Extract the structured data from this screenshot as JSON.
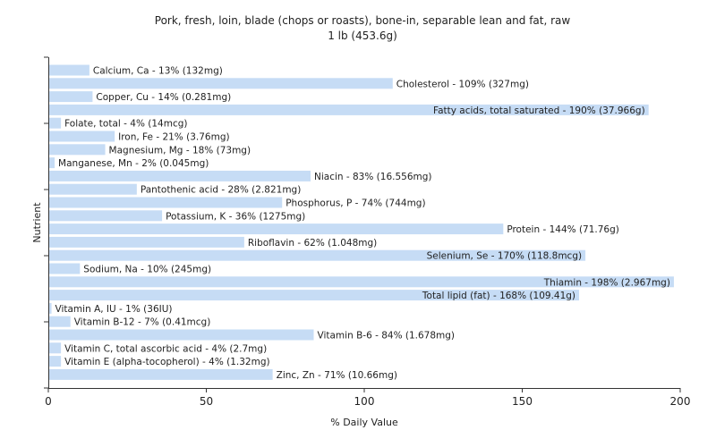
{
  "chart_data": {
    "type": "bar",
    "orientation": "horizontal",
    "title": "Pork, fresh, loin, blade (chops or roasts), bone-in, separable lean and fat, raw",
    "subtitle": "1 lb (453.6g)",
    "xlabel": "% Daily Value",
    "ylabel": "Nutrient",
    "xlim": [
      0,
      200
    ],
    "xticks": [
      0,
      50,
      100,
      150,
      200
    ],
    "grid": false,
    "bar_color": "#c6dcf5",
    "categories": [
      "Calcium, Ca",
      "Cholesterol",
      "Copper, Cu",
      "Fatty acids, total saturated",
      "Folate, total",
      "Iron, Fe",
      "Magnesium, Mg",
      "Manganese, Mn",
      "Niacin",
      "Pantothenic acid",
      "Phosphorus, P",
      "Potassium, K",
      "Protein",
      "Riboflavin",
      "Selenium, Se",
      "Sodium, Na",
      "Thiamin",
      "Total lipid (fat)",
      "Vitamin A, IU",
      "Vitamin B-12",
      "Vitamin B-6",
      "Vitamin C, total ascorbic acid",
      "Vitamin E (alpha-tocopherol)",
      "Zinc, Zn"
    ],
    "values": [
      13,
      109,
      14,
      190,
      4,
      21,
      18,
      2,
      83,
      28,
      74,
      36,
      144,
      62,
      170,
      10,
      198,
      168,
      1,
      7,
      84,
      4,
      4,
      71
    ],
    "labels": [
      "Calcium, Ca - 13% (132mg)",
      "Cholesterol - 109% (327mg)",
      "Copper, Cu - 14% (0.281mg)",
      "Fatty acids, total saturated - 190% (37.966g)",
      "Folate, total - 4% (14mcg)",
      "Iron, Fe - 21% (3.76mg)",
      "Magnesium, Mg - 18% (73mg)",
      "Manganese, Mn - 2% (0.045mg)",
      "Niacin - 83% (16.556mg)",
      "Pantothenic acid - 28% (2.821mg)",
      "Phosphorus, P - 74% (744mg)",
      "Potassium, K - 36% (1275mg)",
      "Protein - 144% (71.76g)",
      "Riboflavin - 62% (1.048mg)",
      "Selenium, Se - 170% (118.8mcg)",
      "Sodium, Na - 10% (245mg)",
      "Thiamin - 198% (2.967mg)",
      "Total lipid (fat) - 168% (109.41g)",
      "Vitamin A, IU - 1% (36IU)",
      "Vitamin B-12 - 7% (0.41mcg)",
      "Vitamin B-6 - 84% (1.678mg)",
      "Vitamin C, total ascorbic acid - 4% (2.7mg)",
      "Vitamin E (alpha-tocopherol) - 4% (1.32mg)",
      "Zinc, Zn - 71% (10.66mg)"
    ]
  }
}
